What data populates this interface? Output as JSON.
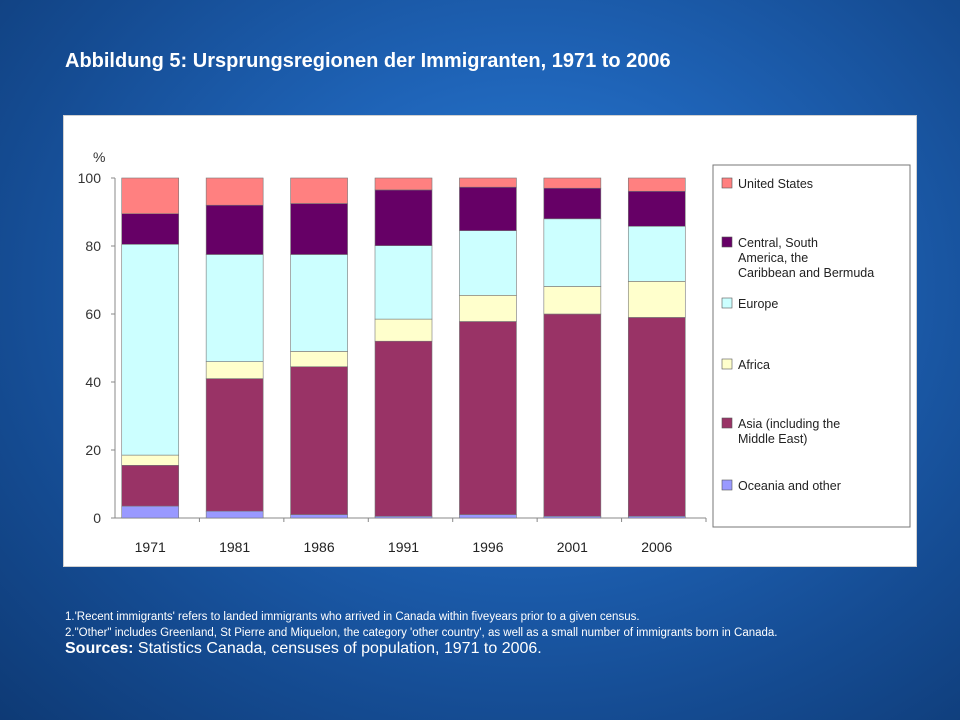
{
  "slide": {
    "title": "Abbildung 5:  Ursprungsregionen der Immigranten, 1971 to 2006",
    "note1": "1.'Recent immigrants' refers to landed immigrants who arrived in Canada within fiveyears prior to a given census.",
    "note2": "2.\"Other\" includes Greenland,  St Pierre and Miquelon, the category 'other country', as well as a small number of immigrants born in Canada.",
    "sources_label": "Sources:",
    "sources_text": " Statistics Canada, censuses of population, 1971 to 2006."
  },
  "chart_data": {
    "type": "bar",
    "stacked": true,
    "title": "",
    "xlabel": "",
    "ylabel": "%",
    "ylim": [
      0,
      100
    ],
    "yticks": [
      0,
      20,
      40,
      60,
      80,
      100
    ],
    "grid": false,
    "legend_position": "right",
    "categories": [
      "1971",
      "1981",
      "1986",
      "1991",
      "1996",
      "2001",
      "2006"
    ],
    "series": [
      {
        "name": "Oceania and other",
        "color": "#9999ff",
        "values": [
          3.5,
          2,
          1,
          0.5,
          1,
          0.5,
          0.5
        ]
      },
      {
        "name": "Asia (including the Middle East)",
        "color": "#993366",
        "values": [
          12,
          39,
          43.5,
          51.5,
          56.8,
          59.5,
          58.5
        ]
      },
      {
        "name": "Africa",
        "color": "#ffffcc",
        "values": [
          3,
          5,
          4.5,
          6.5,
          7.7,
          8.1,
          10.6
        ]
      },
      {
        "name": "Europe",
        "color": "#ccffff",
        "values": [
          62,
          31.5,
          28.5,
          21.6,
          19,
          19.9,
          16.2
        ]
      },
      {
        "name": "Central, South America, the Caribbean and Bermuda",
        "color": "#660066",
        "values": [
          9,
          14.5,
          15,
          16.4,
          12.8,
          9,
          10.3
        ]
      },
      {
        "name": "United States",
        "color": "#ff8080",
        "values": [
          10.5,
          8,
          7.5,
          3.5,
          2.7,
          3,
          3.9
        ]
      }
    ]
  }
}
